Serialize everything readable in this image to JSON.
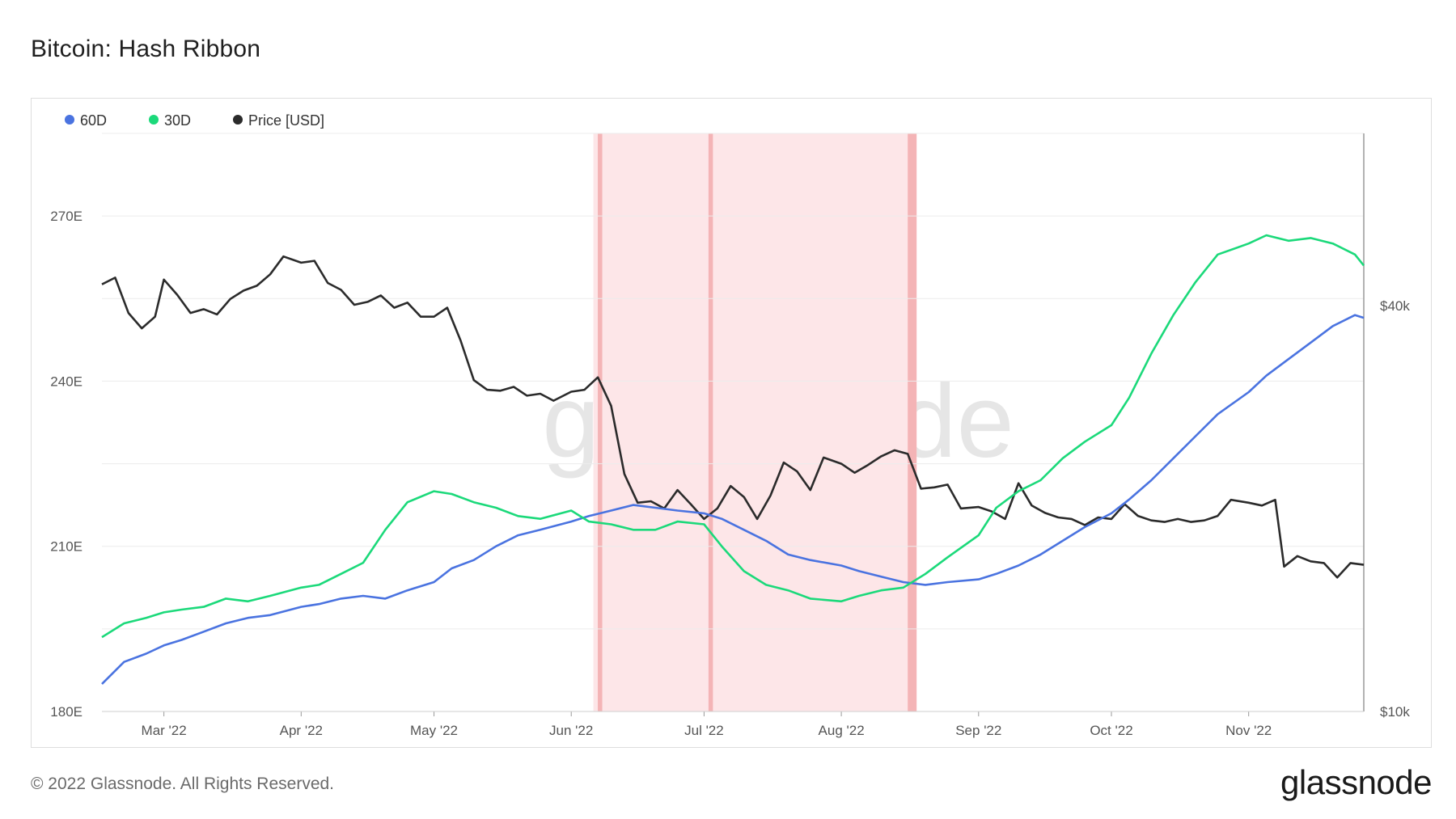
{
  "title": "Bitcoin: Hash Ribbon",
  "footer": {
    "copyright": "© 2022 Glassnode. All Rights Reserved.",
    "logo": "glassnode"
  },
  "watermark": "glassnode",
  "colors": {
    "s60": "#4a73e0",
    "s30": "#1bd97a",
    "price": "#2b2b2b",
    "band_fill": "#fde6e8",
    "band_line": "#f4b4b6"
  },
  "chart_data": {
    "type": "line",
    "legend": [
      {
        "name": "60D",
        "color": "#4a73e0"
      },
      {
        "name": "30D",
        "color": "#1bd97a"
      },
      {
        "name": "Price [USD]",
        "color": "#2b2b2b"
      }
    ],
    "legend_position": "top-left",
    "x_range": [
      "2022-02-15",
      "2022-11-27"
    ],
    "x_ticks": [
      {
        "label": "Mar '22",
        "date": "2022-03-01"
      },
      {
        "label": "Apr '22",
        "date": "2022-04-01"
      },
      {
        "label": "May '22",
        "date": "2022-05-01"
      },
      {
        "label": "Jun '22",
        "date": "2022-06-01"
      },
      {
        "label": "Jul '22",
        "date": "2022-07-01"
      },
      {
        "label": "Aug '22",
        "date": "2022-08-01"
      },
      {
        "label": "Sep '22",
        "date": "2022-09-01"
      },
      {
        "label": "Oct '22",
        "date": "2022-10-01"
      },
      {
        "label": "Nov '22",
        "date": "2022-11-01"
      }
    ],
    "y_left": {
      "range": [
        180,
        285
      ],
      "ticks": [
        {
          "label": "180E",
          "value": 180
        },
        {
          "label": "210E",
          "value": 210
        },
        {
          "label": "240E",
          "value": 240
        },
        {
          "label": "270E",
          "value": 270
        }
      ]
    },
    "y_right": {
      "scale": "log",
      "range": [
        10000,
        72000
      ],
      "ticks": [
        {
          "label": "$10k",
          "value": 10000
        },
        {
          "label": "$40k",
          "value": 40000
        }
      ]
    },
    "capitulation_bands": [
      {
        "start": "2022-06-07",
        "end": "2022-06-08"
      },
      {
        "start": "2022-07-02",
        "end": "2022-07-03"
      },
      {
        "start": "2022-08-16",
        "end": "2022-08-18"
      }
    ],
    "capitulation_region": {
      "start": "2022-06-06",
      "end": "2022-08-18"
    },
    "series": [
      {
        "name": "60D",
        "x": [
          "2022-02-15",
          "2022-02-20",
          "2022-02-25",
          "2022-03-01",
          "2022-03-05",
          "2022-03-10",
          "2022-03-15",
          "2022-03-20",
          "2022-03-25",
          "2022-04-01",
          "2022-04-05",
          "2022-04-10",
          "2022-04-15",
          "2022-04-20",
          "2022-04-25",
          "2022-05-01",
          "2022-05-05",
          "2022-05-10",
          "2022-05-15",
          "2022-05-20",
          "2022-05-25",
          "2022-06-01",
          "2022-06-05",
          "2022-06-10",
          "2022-06-15",
          "2022-06-20",
          "2022-06-25",
          "2022-07-01",
          "2022-07-05",
          "2022-07-10",
          "2022-07-15",
          "2022-07-20",
          "2022-07-25",
          "2022-08-01",
          "2022-08-05",
          "2022-08-10",
          "2022-08-15",
          "2022-08-20",
          "2022-08-25",
          "2022-09-01",
          "2022-09-05",
          "2022-09-10",
          "2022-09-15",
          "2022-09-20",
          "2022-09-25",
          "2022-10-01",
          "2022-10-05",
          "2022-10-10",
          "2022-10-15",
          "2022-10-20",
          "2022-10-25",
          "2022-11-01",
          "2022-11-05",
          "2022-11-10",
          "2022-11-15",
          "2022-11-20",
          "2022-11-25",
          "2022-11-27"
        ],
        "values": [
          185,
          189,
          190.5,
          192,
          193,
          194.5,
          196,
          197,
          197.5,
          199,
          199.5,
          200.5,
          201,
          200.5,
          202,
          203.5,
          206,
          207.5,
          210,
          212,
          213,
          214.5,
          215.5,
          216.5,
          217.5,
          217,
          216.5,
          216,
          215,
          213,
          211,
          208.5,
          207.5,
          206.5,
          205.5,
          204.5,
          203.5,
          203,
          203.5,
          204,
          205,
          206.5,
          208.5,
          211,
          213.5,
          216,
          218.5,
          222,
          226,
          230,
          234,
          238,
          241,
          244,
          247,
          250,
          252,
          251.5
        ]
      },
      {
        "name": "30D",
        "x": [
          "2022-02-15",
          "2022-02-20",
          "2022-02-25",
          "2022-03-01",
          "2022-03-05",
          "2022-03-10",
          "2022-03-15",
          "2022-03-20",
          "2022-03-25",
          "2022-04-01",
          "2022-04-05",
          "2022-04-10",
          "2022-04-15",
          "2022-04-20",
          "2022-04-25",
          "2022-05-01",
          "2022-05-05",
          "2022-05-10",
          "2022-05-15",
          "2022-05-20",
          "2022-05-25",
          "2022-06-01",
          "2022-06-05",
          "2022-06-10",
          "2022-06-15",
          "2022-06-20",
          "2022-06-25",
          "2022-07-01",
          "2022-07-05",
          "2022-07-10",
          "2022-07-15",
          "2022-07-20",
          "2022-07-25",
          "2022-08-01",
          "2022-08-05",
          "2022-08-10",
          "2022-08-15",
          "2022-08-20",
          "2022-08-25",
          "2022-09-01",
          "2022-09-05",
          "2022-09-10",
          "2022-09-15",
          "2022-09-20",
          "2022-09-25",
          "2022-10-01",
          "2022-10-05",
          "2022-10-10",
          "2022-10-15",
          "2022-10-20",
          "2022-10-25",
          "2022-11-01",
          "2022-11-05",
          "2022-11-10",
          "2022-11-15",
          "2022-11-20",
          "2022-11-25",
          "2022-11-27"
        ],
        "values": [
          193.5,
          196,
          197,
          198,
          198.5,
          199,
          200.5,
          200,
          201,
          202.5,
          203,
          205,
          207,
          213,
          218,
          220,
          219.5,
          218,
          217,
          215.5,
          215,
          216.5,
          214.5,
          214,
          213,
          213,
          214.5,
          214,
          210,
          205.5,
          203,
          202,
          200.5,
          200,
          201,
          202,
          202.5,
          205,
          208,
          212,
          217,
          220,
          222,
          226,
          229,
          232,
          237,
          245,
          252,
          258,
          263,
          265,
          266.5,
          265.5,
          266,
          265,
          263,
          261
        ]
      },
      {
        "name": "Price [USD]",
        "axis": "right",
        "x": [
          "2022-02-15",
          "2022-02-18",
          "2022-02-21",
          "2022-02-24",
          "2022-02-27",
          "2022-03-01",
          "2022-03-04",
          "2022-03-07",
          "2022-03-10",
          "2022-03-13",
          "2022-03-16",
          "2022-03-19",
          "2022-03-22",
          "2022-03-25",
          "2022-03-28",
          "2022-04-01",
          "2022-04-04",
          "2022-04-07",
          "2022-04-10",
          "2022-04-13",
          "2022-04-16",
          "2022-04-19",
          "2022-04-22",
          "2022-04-25",
          "2022-04-28",
          "2022-05-01",
          "2022-05-04",
          "2022-05-07",
          "2022-05-10",
          "2022-05-13",
          "2022-05-16",
          "2022-05-19",
          "2022-05-22",
          "2022-05-25",
          "2022-05-28",
          "2022-06-01",
          "2022-06-04",
          "2022-06-07",
          "2022-06-10",
          "2022-06-13",
          "2022-06-16",
          "2022-06-19",
          "2022-06-22",
          "2022-06-25",
          "2022-06-28",
          "2022-07-01",
          "2022-07-04",
          "2022-07-07",
          "2022-07-10",
          "2022-07-13",
          "2022-07-16",
          "2022-07-19",
          "2022-07-22",
          "2022-07-25",
          "2022-07-28",
          "2022-08-01",
          "2022-08-04",
          "2022-08-07",
          "2022-08-10",
          "2022-08-13",
          "2022-08-16",
          "2022-08-19",
          "2022-08-22",
          "2022-08-25",
          "2022-08-28",
          "2022-09-01",
          "2022-09-04",
          "2022-09-07",
          "2022-09-10",
          "2022-09-13",
          "2022-09-16",
          "2022-09-19",
          "2022-09-22",
          "2022-09-25",
          "2022-09-28",
          "2022-10-01",
          "2022-10-04",
          "2022-10-07",
          "2022-10-10",
          "2022-10-13",
          "2022-10-16",
          "2022-10-19",
          "2022-10-22",
          "2022-10-25",
          "2022-10-28",
          "2022-11-01",
          "2022-11-04",
          "2022-11-07",
          "2022-11-09",
          "2022-11-12",
          "2022-11-15",
          "2022-11-18",
          "2022-11-21",
          "2022-11-24",
          "2022-11-27"
        ],
        "values": [
          43000,
          44000,
          39000,
          37000,
          38500,
          43700,
          41500,
          39000,
          39500,
          38800,
          40900,
          42100,
          42800,
          44500,
          47300,
          46300,
          46600,
          43200,
          42200,
          40100,
          40500,
          41400,
          39700,
          40400,
          38500,
          38500,
          39700,
          35500,
          31000,
          30000,
          29900,
          30300,
          29400,
          29600,
          28900,
          29800,
          30000,
          31300,
          28400,
          22500,
          20400,
          20500,
          20000,
          21300,
          20300,
          19300,
          20000,
          21600,
          20800,
          19300,
          20900,
          23400,
          22700,
          21300,
          23800,
          23300,
          22600,
          23200,
          23900,
          24400,
          24100,
          21400,
          21500,
          21700,
          20000,
          20100,
          19800,
          19300,
          21800,
          20200,
          19700,
          19400,
          19300,
          18900,
          19400,
          19300,
          20300,
          19500,
          19200,
          19100,
          19300,
          19100,
          19200,
          19500,
          20600,
          20400,
          20200,
          20600,
          16400,
          17000,
          16700,
          16600,
          15800,
          16600,
          16500
        ]
      }
    ]
  }
}
